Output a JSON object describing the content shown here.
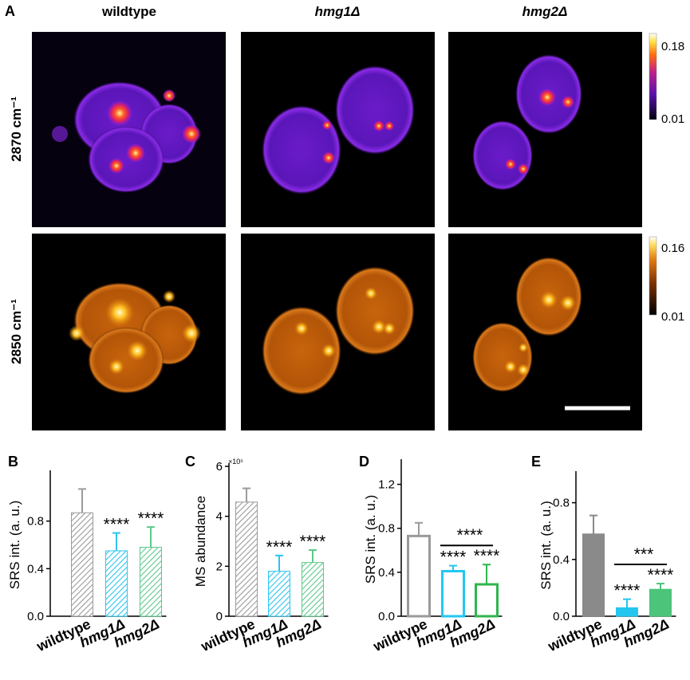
{
  "panel_a": {
    "label": "A",
    "columns": [
      "wildtype",
      "hmg1Δ",
      "hmg2Δ"
    ],
    "rows": [
      "2870 cm⁻¹",
      "2850 cm⁻¹"
    ],
    "colorbars": [
      {
        "max": 0.18,
        "min": 0.01
      },
      {
        "max": 0.16,
        "min": 0.01
      }
    ]
  },
  "chart_data": [
    {
      "type": "bar",
      "panel": "B",
      "ylabel": "SRS int. (a. u.)",
      "bar_style": "hatched",
      "categories": [
        "wildtype",
        "hmg1Δ",
        "hmg2Δ"
      ],
      "values": [
        0.87,
        0.55,
        0.58
      ],
      "errors": [
        0.2,
        0.15,
        0.17
      ],
      "colors": [
        "#9a9a9a",
        "#2ec4ee",
        "#5cc98a"
      ],
      "bar_labels": [
        null,
        "****",
        "****"
      ],
      "ylim": [
        0,
        1.2
      ],
      "yticks": [
        {
          "value": 0,
          "label": "0.0"
        },
        0.4,
        0.8
      ]
    },
    {
      "type": "bar",
      "panel": "C",
      "ylabel": "MS abundance",
      "bar_style": "hatched",
      "axis_multiplier": "×10⁵",
      "categories": [
        "wildtype",
        "hmg1Δ",
        "hmg2Δ"
      ],
      "values": [
        4.57,
        1.8,
        2.15
      ],
      "errors": [
        0.55,
        0.63,
        0.5
      ],
      "colors": [
        "#9a9a9a",
        "#2ec4ee",
        "#5cc98a"
      ],
      "bar_labels": [
        null,
        "****",
        "****"
      ],
      "ylim": [
        0,
        6
      ],
      "yticks": [
        0,
        2,
        4,
        6
      ]
    },
    {
      "type": "bar",
      "panel": "D",
      "ylabel": "SRS int. (a. u.)",
      "bar_style": "open",
      "categories": [
        "wildtype",
        "hmg1Δ",
        "hmg2Δ"
      ],
      "values": [
        0.73,
        0.41,
        0.29
      ],
      "errors": [
        0.12,
        0.05,
        0.18
      ],
      "colors": [
        "#9a9a9a",
        "#22c8f2",
        "#2fb54c"
      ],
      "bar_labels": [
        null,
        "****",
        "****"
      ],
      "bracket_label": "****",
      "ylim": [
        0,
        1.4
      ],
      "yticks": [
        {
          "value": 0,
          "label": "0.0"
        },
        0.4,
        0.8,
        1.2
      ]
    },
    {
      "type": "bar",
      "panel": "E",
      "ylabel": "SRS int. (a. u.)",
      "bar_style": "solid",
      "categories": [
        "wildtype",
        "hmg1Δ",
        "hmg2Δ"
      ],
      "values": [
        0.58,
        0.06,
        0.19
      ],
      "errors": [
        0.13,
        0.06,
        0.04
      ],
      "colors": [
        "#8a8a8a",
        "#22c6ee",
        "#4cc47a"
      ],
      "bar_labels": [
        null,
        "****",
        "****"
      ],
      "bracket_label": "***",
      "ylim": [
        0,
        1.0
      ],
      "yticks": [
        {
          "value": 0,
          "label": "0.0"
        },
        0.4,
        0.8
      ]
    }
  ]
}
